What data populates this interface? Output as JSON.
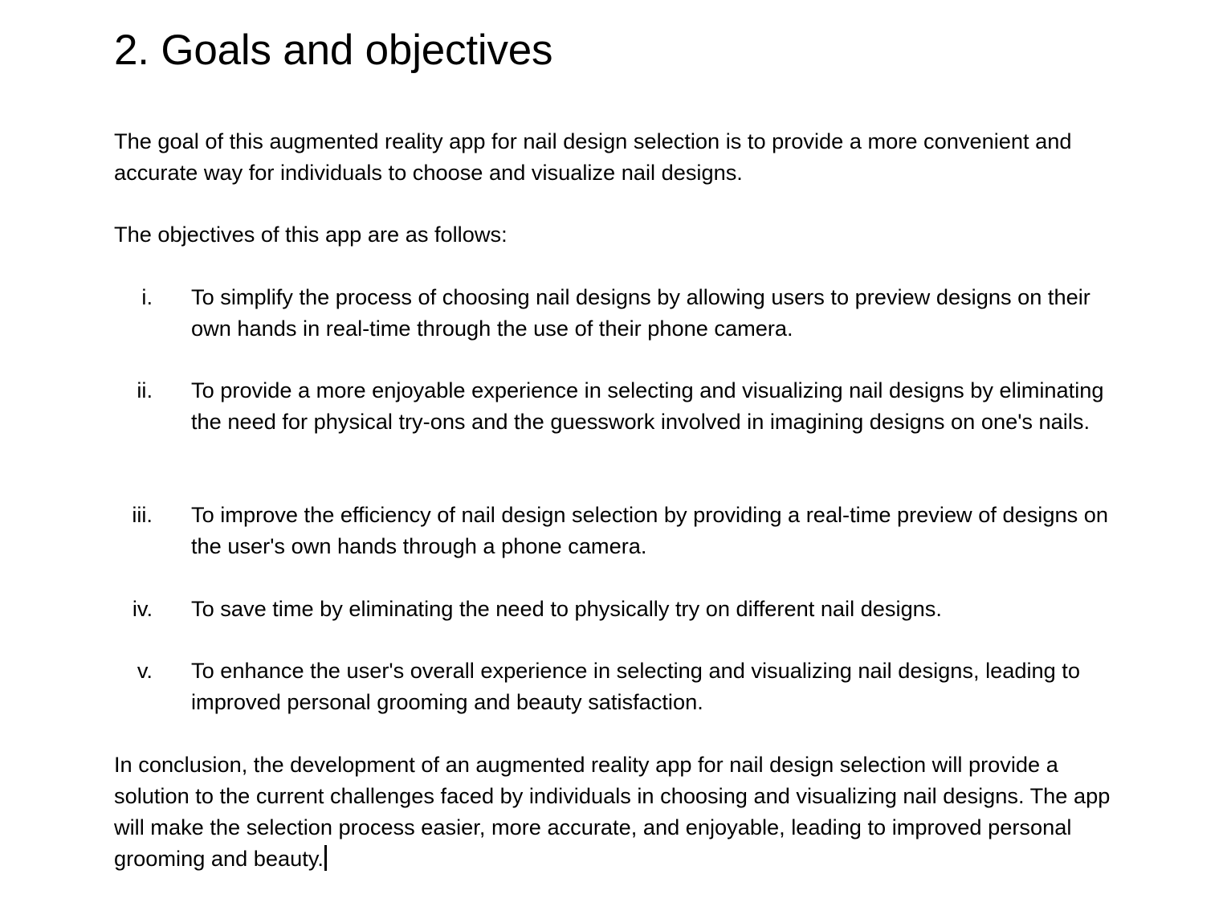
{
  "document": {
    "heading": "2. Goals and objectives",
    "goal_paragraph": "The goal of this augmented reality app for nail design selection is to provide a more convenient and accurate way for individuals to choose and visualize nail designs.",
    "objectives_intro": "The objectives of this app are as follows:",
    "objectives": [
      {
        "marker": "i.",
        "text": "To simplify the process of choosing nail designs by allowing users to preview designs on their own hands in real-time through the use of their phone camera."
      },
      {
        "marker": "ii.",
        "text": "To provide a more enjoyable experience in selecting and visualizing nail designs by eliminating the need for physical try-ons and the guesswork involved in imagining designs on one's nails."
      },
      {
        "marker": "iii.",
        "text": "To improve the efficiency of nail design selection by providing a real-time preview of designs on the user's own hands through a phone camera."
      },
      {
        "marker": "iv.",
        "text": "To save time by eliminating the need to physically try on different nail designs."
      },
      {
        "marker": "v.",
        "text": "To enhance the user's overall experience in selecting and visualizing nail designs, leading to improved personal grooming and beauty satisfaction."
      }
    ],
    "conclusion_paragraph": "In conclusion, the development of an augmented reality app for nail design selection will provide a solution to the current challenges faced by individuals in choosing and visualizing nail designs. The app will make the selection process easier, more accurate, and enjoyable, leading to improved personal grooming and beauty."
  }
}
